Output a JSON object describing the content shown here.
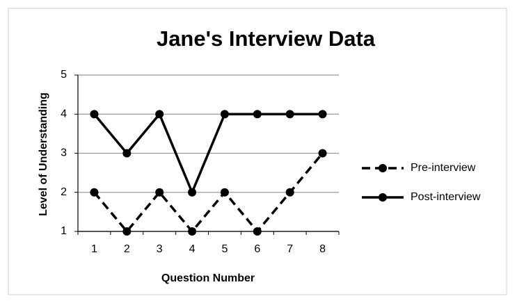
{
  "chart_data": {
    "type": "line",
    "title": "Jane's Interview Data",
    "x_label": "Question Number",
    "y_label": "Level of Understanding",
    "categories": [
      "1",
      "2",
      "3",
      "4",
      "5",
      "6",
      "7",
      "8"
    ],
    "series": [
      {
        "name": "Pre-interview",
        "color": "#000000",
        "dashed": true,
        "values": [
          2,
          1,
          2,
          1,
          2,
          1,
          2,
          3
        ]
      },
      {
        "name": "Post-interview",
        "color": "#000000",
        "dashed": false,
        "values": [
          4,
          3,
          4,
          2,
          4,
          4,
          4,
          4
        ]
      }
    ],
    "ylim": [
      1,
      5
    ],
    "yticks": [
      1,
      2,
      3,
      4,
      5
    ],
    "grid": true,
    "legend": "right"
  }
}
